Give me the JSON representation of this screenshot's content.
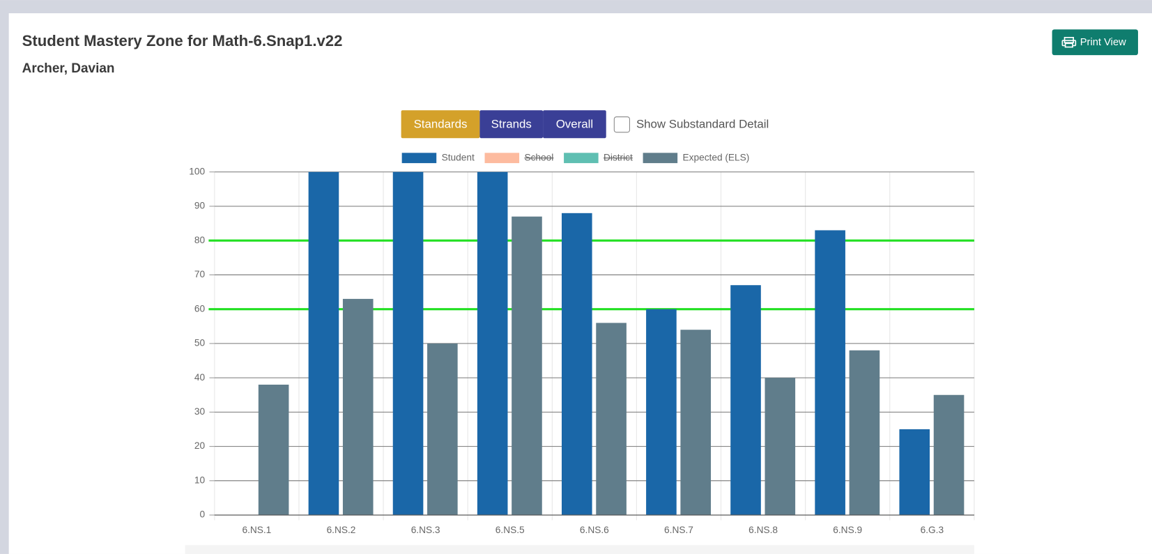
{
  "header": {
    "title": "Student Mastery Zone for Math-6.Snap1.v22",
    "subtitle": "Archer, Davian"
  },
  "print_button": "Print View",
  "tabs": [
    "Standards",
    "Strands",
    "Overall"
  ],
  "active_tab": 0,
  "checkbox_label": "Show Substandard Detail",
  "chart_data": {
    "type": "bar",
    "categories": [
      "6.NS.1",
      "6.NS.2",
      "6.NS.3",
      "6.NS.5",
      "6.NS.6",
      "6.NS.7",
      "6.NS.8",
      "6.NS.9",
      "6.G.3"
    ],
    "series": [
      {
        "name": "Student",
        "color": "#1a67a8",
        "values": [
          null,
          100,
          100,
          100,
          88,
          60,
          67,
          83,
          25
        ]
      },
      {
        "name": "School",
        "color": "#fdbb9f",
        "hidden": true,
        "values": [
          null,
          null,
          null,
          null,
          null,
          null,
          null,
          null,
          null
        ]
      },
      {
        "name": "District",
        "color": "#5fbfb2",
        "hidden": true,
        "values": [
          null,
          null,
          null,
          null,
          null,
          null,
          null,
          null,
          null
        ]
      },
      {
        "name": "Expected (ELS)",
        "color": "#607d8b",
        "values": [
          38,
          63,
          50,
          87,
          56,
          54,
          40,
          48,
          35
        ]
      }
    ],
    "ylim": [
      0,
      100
    ],
    "yticks": [
      0,
      10,
      20,
      30,
      40,
      50,
      60,
      70,
      80,
      90,
      100
    ],
    "grid": true,
    "thresholds": [
      60,
      80
    ],
    "threshold_color": "#22e022"
  }
}
